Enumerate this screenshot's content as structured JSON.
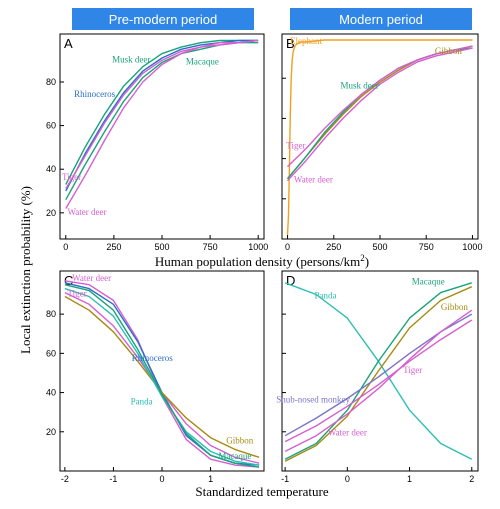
{
  "headers": {
    "left": "Pre-modern period",
    "right": "Modern period"
  },
  "axes": {
    "y_title": "Local extinction probability (%)",
    "x_title_top_prefix": "Human population density (persons/km",
    "x_title_top_sup": "2",
    "x_title_top_suffix": ")",
    "x_title_bottom": "Standardized temperature"
  },
  "colors": {
    "Musk deer": "#1aa37a",
    "Macaque": "#1aa37a",
    "Rhinoceros": "#2a6fc9",
    "Tiger": "#d65fd0",
    "Water deer": "#d65fd0",
    "Elephant": "#f0a020",
    "Gibbon": "#a88a10",
    "Panda": "#2bbfb3",
    "Snub-nosed monkey": "#7a74c8"
  },
  "chart_data": [
    {
      "panel": "A",
      "type": "line",
      "xlim": [
        -30,
        1030
      ],
      "ylim": [
        8,
        102
      ],
      "xticks": [
        0,
        250,
        500,
        750,
        1000
      ],
      "yticks": [
        20,
        40,
        60,
        80
      ],
      "series": [
        {
          "name": "Musk deer",
          "x": [
            0,
            100,
            200,
            300,
            400,
            500,
            600,
            700,
            800,
            900,
            1000
          ],
          "y": [
            33,
            50,
            65,
            78,
            87,
            93,
            96,
            98,
            99,
            99,
            99
          ]
        },
        {
          "name": "Macaque",
          "x": [
            0,
            100,
            200,
            300,
            400,
            500,
            600,
            700,
            800,
            900,
            1000
          ],
          "y": [
            26,
            42,
            57,
            71,
            82,
            89,
            93,
            95,
            97,
            98,
            98
          ]
        },
        {
          "name": "Rhinoceros",
          "x": [
            0,
            100,
            200,
            300,
            400,
            500,
            600,
            700,
            800,
            900,
            1000
          ],
          "y": [
            30,
            47,
            62,
            75,
            85,
            91,
            95,
            97,
            98,
            99,
            99
          ]
        },
        {
          "name": "Tiger",
          "x": [
            0,
            100,
            200,
            300,
            400,
            500,
            600,
            700,
            800,
            900,
            1000
          ],
          "y": [
            31,
            46,
            61,
            74,
            84,
            90,
            94,
            96,
            98,
            98,
            99
          ]
        },
        {
          "name": "Water deer",
          "x": [
            0,
            100,
            200,
            300,
            400,
            500,
            600,
            700,
            800,
            900,
            1000
          ],
          "y": [
            22,
            37,
            53,
            68,
            80,
            88,
            93,
            96,
            97,
            98,
            99
          ]
        }
      ],
      "labels": [
        {
          "text": "Musk deer",
          "series": "Musk deer",
          "x": 340,
          "y": 89
        },
        {
          "text": "Macaque",
          "series": "Macaque",
          "x": 710,
          "y": 88
        },
        {
          "text": "Rhinoceros",
          "series": "Rhinoceros",
          "x": 150,
          "y": 73
        },
        {
          "text": "Tiger",
          "series": "Tiger",
          "x": 30,
          "y": 35
        },
        {
          "text": "Water deer",
          "series": "Water deer",
          "x": 110,
          "y": 19
        }
      ]
    },
    {
      "panel": "B",
      "type": "line",
      "xlim": [
        -30,
        1030
      ],
      "ylim": [
        0,
        102
      ],
      "xticks": [
        0,
        250,
        500,
        750,
        1000
      ],
      "yticks": [
        20,
        40,
        60,
        80
      ],
      "series": [
        {
          "name": "Elephant",
          "x": [
            0,
            5,
            10,
            15,
            20,
            25,
            30,
            40,
            50,
            70,
            100,
            200,
            400,
            600,
            800,
            1000
          ],
          "y": [
            2,
            12,
            35,
            62,
            80,
            89,
            93,
            96,
            97,
            98,
            98,
            99,
            99,
            99,
            99,
            99
          ]
        },
        {
          "name": "Gibbon",
          "x": [
            0,
            100,
            200,
            300,
            400,
            500,
            600,
            700,
            800,
            900,
            1000
          ],
          "y": [
            30,
            41,
            52,
            62,
            71,
            78,
            84,
            89,
            92,
            94,
            96
          ]
        },
        {
          "name": "Musk deer",
          "x": [
            0,
            100,
            200,
            300,
            400,
            500,
            600,
            700,
            800,
            900,
            1000
          ],
          "y": [
            30,
            41,
            53,
            63,
            72,
            79,
            85,
            89,
            92,
            94,
            95
          ]
        },
        {
          "name": "Tiger",
          "x": [
            0,
            100,
            200,
            300,
            400,
            500,
            600,
            700,
            800,
            900,
            1000
          ],
          "y": [
            36,
            45,
            55,
            64,
            72,
            79,
            85,
            89,
            92,
            94,
            96
          ]
        },
        {
          "name": "Water deer",
          "x": [
            0,
            100,
            200,
            300,
            400,
            500,
            600,
            700,
            800,
            900,
            1000
          ],
          "y": [
            29,
            39,
            50,
            60,
            69,
            77,
            83,
            88,
            91,
            93,
            95
          ]
        }
      ],
      "labels": [
        {
          "text": "Elephant",
          "series": "Elephant",
          "x": 100,
          "y": 97
        },
        {
          "text": "Gibbon",
          "series": "Gibbon",
          "x": 870,
          "y": 92
        },
        {
          "text": "Musk deer",
          "series": "Musk deer",
          "x": 390,
          "y": 75
        },
        {
          "text": "Tiger",
          "series": "Tiger",
          "x": 45,
          "y": 45
        },
        {
          "text": "Water deer",
          "series": "Water deer",
          "x": 140,
          "y": 28
        }
      ]
    },
    {
      "panel": "C",
      "type": "line",
      "xlim": [
        -2.1,
        2.1
      ],
      "ylim": [
        0,
        102
      ],
      "xticks": [
        -2,
        -1,
        0,
        1
      ],
      "xtick_labels": [
        "-2",
        "-1",
        "0",
        "1"
      ],
      "yticks": [
        20,
        40,
        60,
        80
      ],
      "series": [
        {
          "name": "Water deer",
          "x": [
            -2,
            -1.5,
            -1,
            -0.5,
            0,
            0.5,
            1,
            1.5,
            2
          ],
          "y": [
            97,
            95,
            87,
            67,
            38,
            16,
            6,
            3,
            2
          ]
        },
        {
          "name": "Rhinoceros",
          "x": [
            -2,
            -1.5,
            -1,
            -0.5,
            0,
            0.5,
            1,
            1.5,
            2
          ],
          "y": [
            96,
            93,
            85,
            66,
            40,
            18,
            8,
            4,
            3
          ]
        },
        {
          "name": "Tiger",
          "x": [
            -2,
            -1.5,
            -1,
            -0.5,
            0,
            0.5,
            1,
            1.5,
            2
          ],
          "y": [
            91,
            85,
            74,
            58,
            40,
            24,
            13,
            7,
            4
          ]
        },
        {
          "name": "Gibbon",
          "x": [
            -2,
            -1.5,
            -1,
            -0.5,
            0,
            0.5,
            1,
            1.5,
            2
          ],
          "y": [
            89,
            82,
            71,
            56,
            40,
            27,
            17,
            11,
            7
          ]
        },
        {
          "name": "Panda",
          "x": [
            -2,
            -1.5,
            -1,
            -0.5,
            0,
            0.5,
            1,
            1.5,
            2
          ],
          "y": [
            93,
            89,
            79,
            60,
            38,
            20,
            10,
            5,
            3
          ]
        },
        {
          "name": "Macaque",
          "x": [
            -2,
            -1.5,
            -1,
            -0.5,
            0,
            0.5,
            1,
            1.5,
            2
          ],
          "y": [
            95,
            92,
            82,
            62,
            39,
            19,
            8,
            4,
            2
          ]
        }
      ],
      "labels": [
        {
          "text": "Water deer",
          "series": "Water deer",
          "x": -1.45,
          "y": 97
        },
        {
          "text": "Tiger",
          "series": "Tiger",
          "x": -1.75,
          "y": 89
        },
        {
          "text": "Rhinoceros",
          "series": "Rhinoceros",
          "x": -0.2,
          "y": 56
        },
        {
          "text": "Panda",
          "series": "Panda",
          "x": -0.42,
          "y": 34
        },
        {
          "text": "Gibbon",
          "series": "Gibbon",
          "x": 1.6,
          "y": 14
        },
        {
          "text": "Macaque",
          "series": "Macaque",
          "x": 1.5,
          "y": 6
        }
      ]
    },
    {
      "panel": "D",
      "type": "line",
      "xlim": [
        -1.05,
        2.1
      ],
      "ylim": [
        0,
        102
      ],
      "xticks": [
        -1,
        0,
        1,
        2
      ],
      "xtick_labels": [
        "-1",
        "0",
        "1",
        "2"
      ],
      "yticks": [
        20,
        40,
        60,
        80
      ],
      "series": [
        {
          "name": "Panda",
          "x": [
            -1,
            -0.5,
            0,
            0.5,
            1,
            1.5,
            2
          ],
          "y": [
            96,
            90,
            78,
            56,
            31,
            14,
            6
          ]
        },
        {
          "name": "Macaque",
          "x": [
            -1,
            -0.5,
            0,
            0.5,
            1,
            1.5,
            2
          ],
          "y": [
            6,
            14,
            31,
            56,
            78,
            91,
            96
          ]
        },
        {
          "name": "Gibbon",
          "x": [
            -1,
            -0.5,
            0,
            0.5,
            1,
            1.5,
            2
          ],
          "y": [
            5,
            13,
            28,
            51,
            73,
            87,
            94
          ]
        },
        {
          "name": "Tiger",
          "x": [
            -1,
            -0.5,
            0,
            0.5,
            1,
            1.5,
            2
          ],
          "y": [
            15,
            23,
            33,
            44,
            56,
            67,
            77
          ]
        },
        {
          "name": "Snub-nosed monkey",
          "x": [
            -1,
            -0.5,
            0,
            0.5,
            1,
            1.5,
            2
          ],
          "y": [
            18,
            27,
            37,
            48,
            60,
            71,
            80
          ]
        },
        {
          "name": "Water deer",
          "x": [
            -1,
            -0.5,
            0,
            0.5,
            1,
            1.5,
            2
          ],
          "y": [
            10,
            18,
            29,
            42,
            57,
            71,
            82
          ]
        }
      ],
      "labels": [
        {
          "text": "Panda",
          "series": "Panda",
          "x": -0.35,
          "y": 88
        },
        {
          "text": "Macaque",
          "series": "Macaque",
          "x": 1.3,
          "y": 95
        },
        {
          "text": "Gibbon",
          "series": "Gibbon",
          "x": 1.72,
          "y": 82
        },
        {
          "text": "Tiger",
          "series": "Tiger",
          "x": 1.05,
          "y": 50
        },
        {
          "text": "Snub-nosed monkey",
          "series": "Snub-nosed monkey",
          "x": -0.55,
          "y": 35
        },
        {
          "text": "Water deer",
          "series": "Water deer",
          "x": 0.0,
          "y": 18
        }
      ]
    }
  ]
}
